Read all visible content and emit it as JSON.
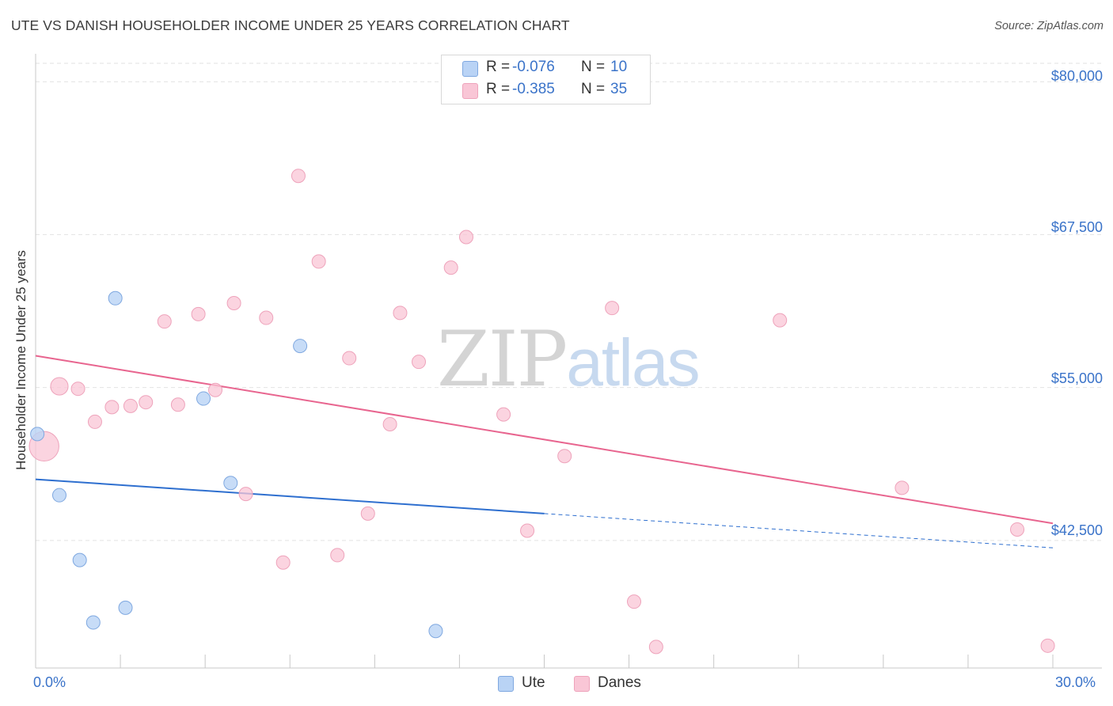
{
  "title": "UTE VS DANISH HOUSEHOLDER INCOME UNDER 25 YEARS CORRELATION CHART",
  "source": "Source: ZipAtlas.com",
  "watermark": {
    "zip": "ZIP",
    "atlas": "atlas"
  },
  "legend": [
    {
      "r_label": "R =",
      "r_value": "-0.076",
      "n_label": "N =",
      "n_value": "10"
    },
    {
      "r_label": "R =",
      "r_value": "-0.385",
      "n_label": "N =",
      "n_value": "35"
    }
  ],
  "bottom_legend": [
    {
      "label": "Ute"
    },
    {
      "label": "Danes"
    }
  ],
  "chart_data": {
    "type": "scatter",
    "title": "UTE VS DANISH HOUSEHOLDER INCOME UNDER 25 YEARS CORRELATION CHART",
    "xlabel": "",
    "ylabel": "Householder Income Under 25 years",
    "xlim": [
      0,
      30
    ],
    "ylim": [
      33500,
      81500
    ],
    "x_tick_labels": [
      "0.0%",
      "30.0%"
    ],
    "y_ticks": [
      42500,
      55000,
      67500,
      80000
    ],
    "y_tick_labels": [
      "$42,500",
      "$55,000",
      "$67,500",
      "$80,000"
    ],
    "grid": true,
    "colors": {
      "ute_fill": "#b9d3f5",
      "ute_edge": "#7fa8e0",
      "ute_line": "#2e6fcf",
      "danes_fill": "#f9c6d6",
      "danes_edge": "#eea3bb",
      "danes_line": "#e8658f"
    },
    "series": [
      {
        "name": "Ute",
        "points": [
          {
            "x": 0.05,
            "y": 51200,
            "size": 1
          },
          {
            "x": 0.7,
            "y": 46200,
            "size": 1
          },
          {
            "x": 1.3,
            "y": 40900,
            "size": 1
          },
          {
            "x": 1.7,
            "y": 35800,
            "size": 1
          },
          {
            "x": 2.65,
            "y": 37000,
            "size": 1
          },
          {
            "x": 2.35,
            "y": 62300,
            "size": 1
          },
          {
            "x": 4.95,
            "y": 54100,
            "size": 1
          },
          {
            "x": 5.75,
            "y": 47200,
            "size": 1
          },
          {
            "x": 7.8,
            "y": 58400,
            "size": 1
          },
          {
            "x": 11.8,
            "y": 35100,
            "size": 1
          }
        ],
        "trend": {
          "x0": 0,
          "y0": 47500,
          "x1": 15,
          "y1": 44700,
          "dashed_to_x": 30,
          "dashed_to_y": 41900
        }
      },
      {
        "name": "Danes",
        "points": [
          {
            "x": 0.25,
            "y": 50200,
            "size": 2.2
          },
          {
            "x": 0.7,
            "y": 55100,
            "size": 1.3
          },
          {
            "x": 1.25,
            "y": 54900,
            "size": 1
          },
          {
            "x": 1.75,
            "y": 52200,
            "size": 1
          },
          {
            "x": 2.25,
            "y": 53400,
            "size": 1
          },
          {
            "x": 2.8,
            "y": 53500,
            "size": 1
          },
          {
            "x": 3.25,
            "y": 53800,
            "size": 1
          },
          {
            "x": 3.8,
            "y": 60400,
            "size": 1
          },
          {
            "x": 4.2,
            "y": 53600,
            "size": 1
          },
          {
            "x": 4.8,
            "y": 61000,
            "size": 1
          },
          {
            "x": 5.3,
            "y": 54800,
            "size": 1
          },
          {
            "x": 5.85,
            "y": 61900,
            "size": 1
          },
          {
            "x": 6.2,
            "y": 46300,
            "size": 1
          },
          {
            "x": 6.8,
            "y": 60700,
            "size": 1
          },
          {
            "x": 7.3,
            "y": 40700,
            "size": 1
          },
          {
            "x": 7.75,
            "y": 72300,
            "size": 1
          },
          {
            "x": 8.35,
            "y": 65300,
            "size": 1
          },
          {
            "x": 8.9,
            "y": 41300,
            "size": 1
          },
          {
            "x": 9.25,
            "y": 57400,
            "size": 1
          },
          {
            "x": 9.8,
            "y": 44700,
            "size": 1
          },
          {
            "x": 10.45,
            "y": 52000,
            "size": 1
          },
          {
            "x": 10.75,
            "y": 61100,
            "size": 1
          },
          {
            "x": 11.3,
            "y": 57100,
            "size": 1
          },
          {
            "x": 12.25,
            "y": 64800,
            "size": 1
          },
          {
            "x": 12.7,
            "y": 67300,
            "size": 1
          },
          {
            "x": 13.8,
            "y": 52800,
            "size": 1
          },
          {
            "x": 14.5,
            "y": 43300,
            "size": 1
          },
          {
            "x": 15.6,
            "y": 49400,
            "size": 1
          },
          {
            "x": 17.0,
            "y": 61500,
            "size": 1
          },
          {
            "x": 17.65,
            "y": 37500,
            "size": 1
          },
          {
            "x": 18.3,
            "y": 33800,
            "size": 1
          },
          {
            "x": 21.95,
            "y": 60500,
            "size": 1
          },
          {
            "x": 25.55,
            "y": 46800,
            "size": 1
          },
          {
            "x": 28.95,
            "y": 43400,
            "size": 1
          },
          {
            "x": 29.85,
            "y": 33900,
            "size": 1
          }
        ],
        "trend": {
          "x0": 0,
          "y0": 57600,
          "x1": 30,
          "y1": 43900
        }
      }
    ]
  }
}
